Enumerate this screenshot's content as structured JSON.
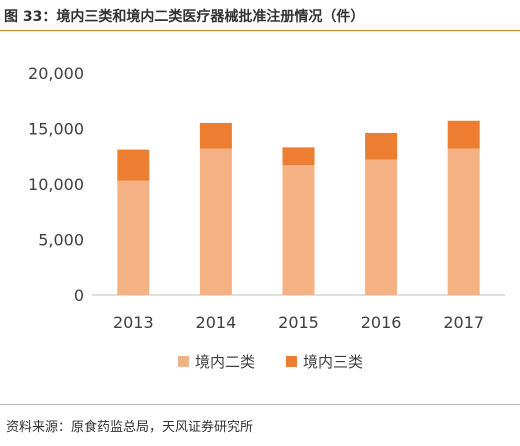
{
  "figure": {
    "title": "图 33：境内三类和境内二类医疗器械批准注册情况（件）",
    "source": "资料来源：原食药监总局，天风证券研究所"
  },
  "colors": {
    "domestic_class2": "#f4b183",
    "domestic_class3": "#ed7d31",
    "title_rule": "#d9822b"
  },
  "chart_data": {
    "type": "bar",
    "stacked": true,
    "title": "图 33：境内三类和境内二类医疗器械批准注册情况（件）",
    "xlabel": "",
    "ylabel": "",
    "categories": [
      "2013",
      "2014",
      "2015",
      "2016",
      "2017"
    ],
    "series": [
      {
        "name": "境内二类",
        "values": [
          10300,
          13200,
          11700,
          12200,
          13200
        ],
        "color": "#f4b183"
      },
      {
        "name": "境内三类",
        "values": [
          2800,
          2300,
          1600,
          2400,
          2500
        ],
        "color": "#ed7d31"
      }
    ],
    "ylim": [
      0,
      20000
    ],
    "yticks": [
      0,
      5000,
      10000,
      15000,
      20000
    ],
    "ytick_labels": [
      "0",
      "5,000",
      "10,000",
      "15,000",
      "20,000"
    ],
    "grid": false,
    "legend": "bottom"
  }
}
